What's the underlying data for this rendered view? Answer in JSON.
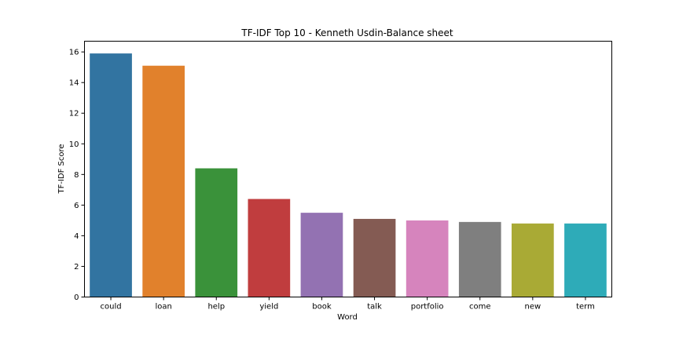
{
  "chart_data": {
    "type": "bar",
    "title": "TF-IDF Top 10 - Kenneth Usdin-Balance sheet",
    "xlabel": "Word",
    "ylabel": "TF-IDF Score",
    "categories": [
      "could",
      "loan",
      "help",
      "yield",
      "book",
      "talk",
      "portfolio",
      "come",
      "new",
      "term"
    ],
    "values": [
      15.9,
      15.1,
      8.4,
      6.4,
      5.5,
      5.1,
      5.0,
      4.9,
      4.8,
      4.8
    ],
    "ylim": [
      0,
      16.7
    ],
    "yticks": [
      "0",
      "2",
      "4",
      "6",
      "8",
      "10",
      "12",
      "14",
      "16"
    ],
    "grid": false,
    "legend": "none",
    "colors": [
      "#3274a1",
      "#e1812c",
      "#3a923a",
      "#c03d3e",
      "#9372b2",
      "#845b53",
      "#d684bd",
      "#7f7f7f",
      "#a9aa35",
      "#2eabb8"
    ]
  }
}
